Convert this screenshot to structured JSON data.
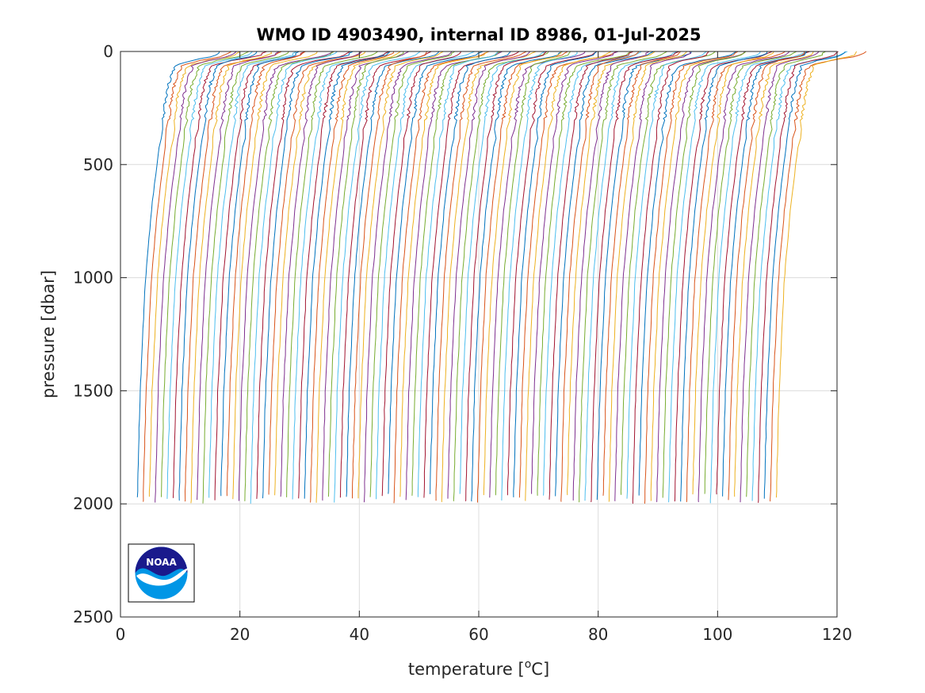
{
  "chart_data": {
    "type": "line",
    "title": "WMO ID 4903490, internal ID 8986, 01-Jul-2025",
    "xlabel_main": "temperature [",
    "xlabel_sup": "o",
    "xlabel_tail": "C]",
    "ylabel": "pressure [dbar]",
    "xlim": [
      0,
      120
    ],
    "ylim": [
      0,
      2500
    ],
    "y_reversed": true,
    "grid": true,
    "xticks": [
      0,
      20,
      40,
      60,
      80,
      100,
      120
    ],
    "yticks": [
      0,
      500,
      1000,
      1500,
      2000,
      2500
    ],
    "xtick_labels": [
      "0",
      "20",
      "40",
      "60",
      "80",
      "100",
      "120"
    ],
    "ytick_labels": [
      "0",
      "500",
      "1000",
      "1500",
      "2000",
      "2500"
    ],
    "profile_count": 108,
    "first_profile_deep_temperature": 2.8,
    "profile_offset": 1.0,
    "bottom_pressure": 2000,
    "profile_shape": {
      "pressure": [
        0,
        20,
        40,
        60,
        100,
        150,
        200,
        300,
        400,
        500,
        700,
        1000,
        1500,
        2000
      ],
      "relative_temperature": [
        14.5,
        13.5,
        9.5,
        6.5,
        5.8,
        5.2,
        4.8,
        4.3,
        3.8,
        3.3,
        2.4,
        1.4,
        0.5,
        0.0
      ]
    },
    "series_colors": [
      "#0072BD",
      "#D95319",
      "#EDB120",
      "#7E2F8E",
      "#77AC30",
      "#4DBEEE",
      "#A2142F"
    ]
  },
  "logo": {
    "text": "NOAA",
    "colors": {
      "navy": "#1a1a8c",
      "sky": "#0096e6"
    }
  }
}
